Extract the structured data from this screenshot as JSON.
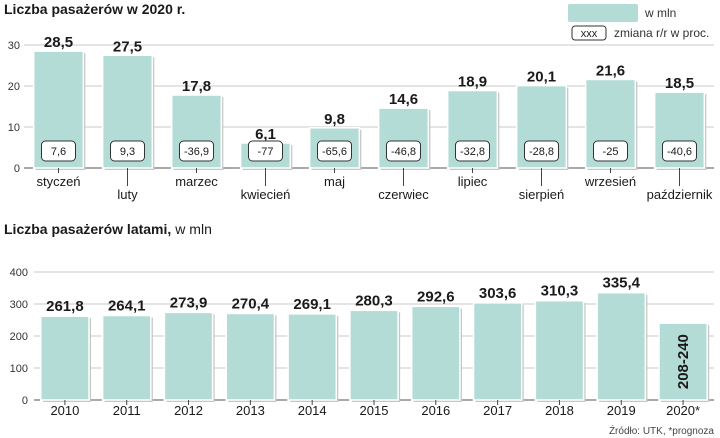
{
  "colors": {
    "bar": "#b4dcd6",
    "bar_stroke": "#ffffff",
    "bar_shadow": "#c6c6c6",
    "grid": "#c9c9c9",
    "text": "#1a1a1a"
  },
  "legend": {
    "bar_label": "w mln",
    "box_sample": "xxx",
    "box_label": "zmiana r/r w proc."
  },
  "source": "Źródło: UTK, *prognoza",
  "chart_data": [
    {
      "type": "bar",
      "title": "Liczba pasażerów w 2020 r.",
      "ylim": [
        0,
        30
      ],
      "yticks": [
        0,
        10,
        20,
        30
      ],
      "grid": true,
      "categories": [
        "styczeń",
        "luty",
        "marzec",
        "kwiecień",
        "maj",
        "czerwiec",
        "lipiec",
        "sierpień",
        "wrzesień",
        "październik"
      ],
      "values": [
        28.5,
        27.5,
        17.8,
        6.1,
        9.8,
        14.6,
        18.9,
        20.1,
        21.6,
        18.5
      ],
      "value_labels": [
        "28,5",
        "27,5",
        "17,8",
        "6,1",
        "9,8",
        "14,6",
        "18,9",
        "20,1",
        "21,6",
        "18,5"
      ],
      "change_labels": [
        "7,6",
        "9,3",
        "-36,9",
        "-77",
        "-65,6",
        "-46,8",
        "-32,8",
        "-28,8",
        "-25",
        "-40,6"
      ]
    },
    {
      "type": "bar",
      "title": "Liczba pasażerów latami,",
      "unit": "w mln",
      "ylim": [
        0,
        400
      ],
      "yticks": [
        0,
        100,
        200,
        300,
        400
      ],
      "grid": true,
      "categories": [
        "2010",
        "2011",
        "2012",
        "2013",
        "2014",
        "2015",
        "2016",
        "2017",
        "2018",
        "2019",
        "2020*"
      ],
      "values": [
        261.8,
        264.1,
        273.9,
        270.4,
        269.1,
        280.3,
        292.6,
        303.6,
        310.3,
        335.4,
        240
      ],
      "range_low": [
        null,
        null,
        null,
        null,
        null,
        null,
        null,
        null,
        null,
        null,
        208
      ],
      "value_labels": [
        "261,8",
        "264,1",
        "273,9",
        "270,4",
        "269,1",
        "280,3",
        "292,6",
        "303,6",
        "310,3",
        "335,4",
        "208-240"
      ]
    }
  ]
}
